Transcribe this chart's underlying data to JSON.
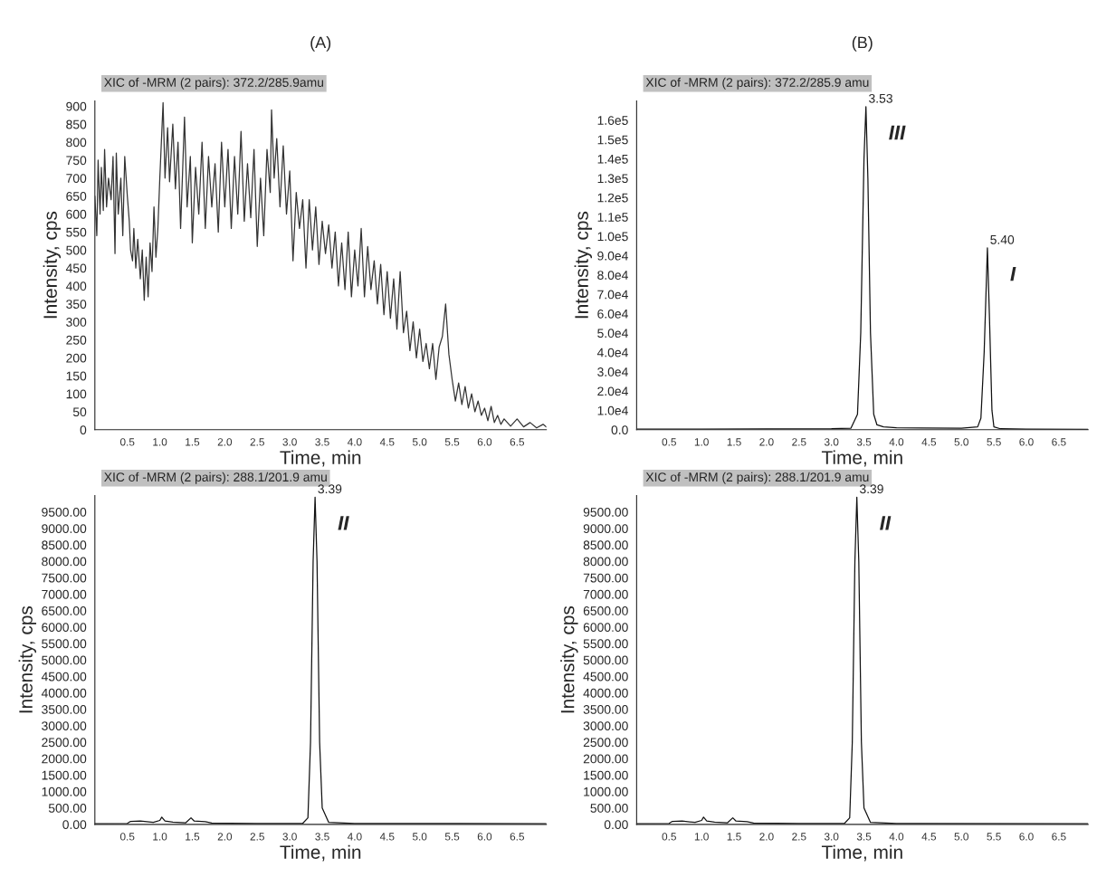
{
  "chart_data": [
    {
      "type": "line",
      "title": "(A)",
      "subtitle": "XIC of -MRM (2 pairs): 372.2/285.9amu",
      "xlabel": "Time, min",
      "ylabel": "Intensity, cps",
      "series": [
        {
          "color": "#333333",
          "x": [
            0.0,
            0.03,
            0.05,
            0.08,
            0.1,
            0.13,
            0.15,
            0.18,
            0.21,
            0.25,
            0.28,
            0.31,
            0.33,
            0.36,
            0.4,
            0.43,
            0.46,
            0.5,
            0.53,
            0.55,
            0.58,
            0.6,
            0.63,
            0.66,
            0.7,
            0.73,
            0.76,
            0.79,
            0.82,
            0.85,
            0.88,
            0.91,
            0.94,
            0.97,
            1.0,
            1.05,
            1.08,
            1.12,
            1.15,
            1.2,
            1.24,
            1.28,
            1.32,
            1.38,
            1.42,
            1.47,
            1.5,
            1.55,
            1.6,
            1.65,
            1.7,
            1.75,
            1.8,
            1.85,
            1.9,
            1.95,
            2.0,
            2.05,
            2.1,
            2.15,
            2.2,
            2.25,
            2.3,
            2.35,
            2.4,
            2.45,
            2.5,
            2.55,
            2.6,
            2.65,
            2.7,
            2.72,
            2.76,
            2.8,
            2.85,
            2.9,
            2.95,
            3.0,
            3.05,
            3.1,
            3.15,
            3.2,
            3.25,
            3.3,
            3.35,
            3.4,
            3.45,
            3.5,
            3.55,
            3.6,
            3.65,
            3.7,
            3.75,
            3.8,
            3.85,
            3.9,
            3.95,
            4.0,
            4.05,
            4.1,
            4.15,
            4.2,
            4.25,
            4.3,
            4.35,
            4.4,
            4.45,
            4.5,
            4.55,
            4.6,
            4.65,
            4.7,
            4.75,
            4.8,
            4.85,
            4.9,
            4.95,
            5.0,
            5.05,
            5.1,
            5.15,
            5.2,
            5.25,
            5.3,
            5.35,
            5.4,
            5.45,
            5.5,
            5.55,
            5.6,
            5.65,
            5.7,
            5.75,
            5.8,
            5.85,
            5.9,
            5.95,
            6.0,
            6.05,
            6.1,
            6.15,
            6.2,
            6.25,
            6.3,
            6.4,
            6.5,
            6.6,
            6.7,
            6.8,
            6.9,
            6.95
          ],
          "values": [
            650,
            540,
            750,
            600,
            730,
            610,
            780,
            620,
            700,
            640,
            760,
            490,
            770,
            600,
            700,
            540,
            760,
            650,
            580,
            500,
            470,
            560,
            450,
            530,
            420,
            500,
            360,
            480,
            370,
            520,
            440,
            620,
            480,
            560,
            700,
            910,
            700,
            840,
            690,
            850,
            670,
            800,
            560,
            870,
            620,
            760,
            520,
            730,
            600,
            800,
            560,
            760,
            620,
            740,
            550,
            800,
            620,
            780,
            560,
            760,
            600,
            830,
            580,
            740,
            590,
            780,
            510,
            700,
            540,
            780,
            660,
            890,
            700,
            810,
            620,
            790,
            600,
            720,
            470,
            660,
            560,
            640,
            450,
            640,
            500,
            620,
            460,
            580,
            490,
            570,
            450,
            550,
            400,
            520,
            390,
            550,
            370,
            500,
            400,
            560,
            370,
            510,
            390,
            470,
            350,
            460,
            320,
            440,
            310,
            420,
            280,
            440,
            270,
            330,
            220,
            300,
            200,
            280,
            190,
            240,
            170,
            240,
            140,
            230,
            260,
            350,
            210,
            140,
            80,
            130,
            70,
            120,
            60,
            100,
            50,
            80,
            40,
            60,
            25,
            65,
            20,
            40,
            15,
            30,
            10,
            30,
            8,
            20,
            5,
            15,
            8
          ]
        }
      ],
      "xlim": [
        0,
        6.95
      ],
      "xticks": [
        0.5,
        {
          "value": 1,
          "label": "1.0"
        },
        1.5,
        {
          "value": 2,
          "label": "2.0"
        },
        2.5,
        {
          "value": 3,
          "label": "3.0"
        },
        3.5,
        {
          "value": 4,
          "label": "4.0"
        },
        4.5,
        {
          "value": 5,
          "label": "5.0"
        },
        5.5,
        {
          "value": 6,
          "label": "6.0"
        },
        6.5
      ],
      "ylim": [
        0,
        915
      ],
      "yticks": [
        0,
        50,
        100,
        150,
        200,
        250,
        300,
        350,
        400,
        450,
        500,
        550,
        600,
        650,
        700,
        750,
        800,
        850,
        900
      ]
    },
    {
      "type": "line",
      "title": "(B)",
      "subtitle": "XIC of -MRM (2 pairs): 372.2/285.9 amu",
      "xlabel": "Time, min",
      "ylabel": "Intensity, cps",
      "series": [
        {
          "color": "#111111",
          "x": [
            0.0,
            1.0,
            2.0,
            3.0,
            3.3,
            3.4,
            3.45,
            3.5,
            3.53,
            3.56,
            3.6,
            3.65,
            3.7,
            3.8,
            4.0,
            5.0,
            5.25,
            5.3,
            5.35,
            5.4,
            5.43,
            5.47,
            5.5,
            5.6,
            6.0,
            6.95
          ],
          "values": [
            300,
            300,
            400,
            500,
            800,
            8000,
            50000,
            140000,
            167000,
            130000,
            50000,
            8000,
            2500,
            1500,
            1000,
            800,
            1500,
            6000,
            40000,
            94000,
            60000,
            10000,
            1500,
            500,
            300,
            200
          ]
        }
      ],
      "annotations": [
        {
          "text": "3.53",
          "x": 3.53,
          "y": 167000
        },
        {
          "text": "III",
          "x": 3.53,
          "y": 167000
        },
        {
          "text": "5.40",
          "x": 5.4,
          "y": 94000
        },
        {
          "text": "I",
          "x": 5.4,
          "y": 94000
        }
      ],
      "xlim": [
        0,
        6.95
      ],
      "xticks": [
        0.5,
        {
          "value": 1,
          "label": "1.0"
        },
        1.5,
        {
          "value": 2,
          "label": "2.0"
        },
        2.5,
        {
          "value": 3,
          "label": "3.0"
        },
        3.5,
        {
          "value": 4,
          "label": "4.0"
        },
        4.5,
        {
          "value": 5,
          "label": "5.0"
        },
        5.5,
        {
          "value": 6,
          "label": "6.0"
        },
        6.5
      ],
      "ylim": [
        0,
        170000
      ],
      "yticks": [
        {
          "value": 0,
          "label": "0.0"
        },
        {
          "value": 10000,
          "label": "1.0e4"
        },
        {
          "value": 20000,
          "label": "2.0e4"
        },
        {
          "value": 30000,
          "label": "3.0e4"
        },
        {
          "value": 40000,
          "label": "4.0e4"
        },
        {
          "value": 50000,
          "label": "5.0e4"
        },
        {
          "value": 60000,
          "label": "6.0e4"
        },
        {
          "value": 70000,
          "label": "7.0e4"
        },
        {
          "value": 80000,
          "label": "8.0e4"
        },
        {
          "value": 90000,
          "label": "9.0e4"
        },
        {
          "value": 100000,
          "label": "1.0e5"
        },
        {
          "value": 110000,
          "label": "1.1e5"
        },
        {
          "value": 120000,
          "label": "1.2e5"
        },
        {
          "value": 130000,
          "label": "1.3e5"
        },
        {
          "value": 140000,
          "label": "1.4e5"
        },
        {
          "value": 150000,
          "label": "1.5e5"
        },
        {
          "value": 160000,
          "label": "1.6e5"
        }
      ]
    },
    {
      "type": "line",
      "subtitle": "XIC of -MRM (2 pairs): 288.1/201.9 amu",
      "xlabel": "Time, min",
      "ylabel": "Intensity, cps",
      "series": [
        {
          "color": "#111111",
          "x": [
            0.0,
            0.5,
            0.55,
            0.7,
            0.9,
            1.0,
            1.03,
            1.08,
            1.2,
            1.4,
            1.48,
            1.53,
            1.7,
            1.8,
            2.5,
            3.2,
            3.28,
            3.32,
            3.36,
            3.39,
            3.42,
            3.46,
            3.5,
            3.6,
            4.0,
            6.95
          ],
          "values": [
            20,
            30,
            90,
            100,
            60,
            120,
            220,
            100,
            70,
            50,
            200,
            100,
            80,
            40,
            30,
            30,
            200,
            2500,
            8000,
            9950,
            8000,
            2500,
            500,
            60,
            30,
            20
          ]
        }
      ],
      "annotations": [
        {
          "text": "3.39",
          "x": 3.39,
          "y": 9950
        },
        {
          "text": "II",
          "x": 3.39,
          "y": 9950
        }
      ],
      "xlim": [
        0,
        6.95
      ],
      "xticks": [
        0.5,
        {
          "value": 1,
          "label": "1.0"
        },
        1.5,
        {
          "value": 2,
          "label": "2.0"
        },
        2.5,
        {
          "value": 3,
          "label": "3.0"
        },
        3.5,
        {
          "value": 4,
          "label": "4.0"
        },
        4.5,
        {
          "value": 5,
          "label": "5.0"
        },
        5.5,
        {
          "value": 6,
          "label": "6.0"
        },
        6.5
      ],
      "ylim": [
        0,
        10000
      ],
      "yticks": [
        {
          "value": 0,
          "label": "0.00"
        },
        {
          "value": 500,
          "label": "500.00"
        },
        {
          "value": 1000,
          "label": "1000.00"
        },
        {
          "value": 1500,
          "label": "1500.00"
        },
        {
          "value": 2000,
          "label": "2000.00"
        },
        {
          "value": 2500,
          "label": "2500.00"
        },
        {
          "value": 3000,
          "label": "3000.00"
        },
        {
          "value": 3500,
          "label": "3500.00"
        },
        {
          "value": 4000,
          "label": "4000.00"
        },
        {
          "value": 4500,
          "label": "4500.00"
        },
        {
          "value": 5000,
          "label": "5000.00"
        },
        {
          "value": 5500,
          "label": "5500.00"
        },
        {
          "value": 6000,
          "label": "6000.00"
        },
        {
          "value": 6500,
          "label": "6500.00"
        },
        {
          "value": 7000,
          "label": "7000.00"
        },
        {
          "value": 7500,
          "label": "7500.00"
        },
        {
          "value": 8000,
          "label": "8000.00"
        },
        {
          "value": 8500,
          "label": "8500.00"
        },
        {
          "value": 9000,
          "label": "9000.00"
        },
        {
          "value": 9500,
          "label": "9500.00"
        }
      ]
    },
    {
      "type": "line",
      "subtitle": "XIC of -MRM (2 pairs): 288.1/201.9 amu",
      "xlabel": "Time, min",
      "ylabel": "Intensity, cps",
      "series": [
        {
          "color": "#111111",
          "x": [
            0.0,
            0.5,
            0.55,
            0.7,
            0.9,
            1.0,
            1.03,
            1.08,
            1.2,
            1.4,
            1.48,
            1.53,
            1.7,
            1.8,
            2.5,
            3.2,
            3.28,
            3.32,
            3.36,
            3.39,
            3.42,
            3.46,
            3.5,
            3.6,
            4.0,
            6.95
          ],
          "values": [
            20,
            30,
            90,
            100,
            60,
            120,
            220,
            100,
            70,
            50,
            200,
            100,
            80,
            40,
            30,
            30,
            200,
            2500,
            8000,
            9950,
            8000,
            2500,
            500,
            60,
            30,
            20
          ]
        }
      ],
      "annotations": [
        {
          "text": "3.39",
          "x": 3.39,
          "y": 9950
        },
        {
          "text": "II",
          "x": 3.39,
          "y": 9950
        }
      ],
      "xlim": [
        0,
        6.95
      ],
      "xticks": [
        0.5,
        {
          "value": 1,
          "label": "1.0"
        },
        1.5,
        {
          "value": 2,
          "label": "2.0"
        },
        2.5,
        {
          "value": 3,
          "label": "3.0"
        },
        3.5,
        {
          "value": 4,
          "label": "4.0"
        },
        4.5,
        {
          "value": 5,
          "label": "5.0"
        },
        5.5,
        {
          "value": 6,
          "label": "6.0"
        },
        6.5
      ],
      "ylim": [
        0,
        10000
      ],
      "yticks": [
        {
          "value": 0,
          "label": "0.00"
        },
        {
          "value": 500,
          "label": "500.00"
        },
        {
          "value": 1000,
          "label": "1000.00"
        },
        {
          "value": 1500,
          "label": "1500.00"
        },
        {
          "value": 2000,
          "label": "2000.00"
        },
        {
          "value": 2500,
          "label": "2500.00"
        },
        {
          "value": 3000,
          "label": "3000.00"
        },
        {
          "value": 3500,
          "label": "3500.00"
        },
        {
          "value": 4000,
          "label": "4000.00"
        },
        {
          "value": 4500,
          "label": "4500.00"
        },
        {
          "value": 5000,
          "label": "5000.00"
        },
        {
          "value": 5500,
          "label": "5500.00"
        },
        {
          "value": 6000,
          "label": "6000.00"
        },
        {
          "value": 6500,
          "label": "6500.00"
        },
        {
          "value": 7000,
          "label": "7000.00"
        },
        {
          "value": 7500,
          "label": "7500.00"
        },
        {
          "value": 8000,
          "label": "8000.00"
        },
        {
          "value": 8500,
          "label": "8500.00"
        },
        {
          "value": 9000,
          "label": "9000.00"
        },
        {
          "value": 9500,
          "label": "9500.00"
        }
      ]
    }
  ]
}
